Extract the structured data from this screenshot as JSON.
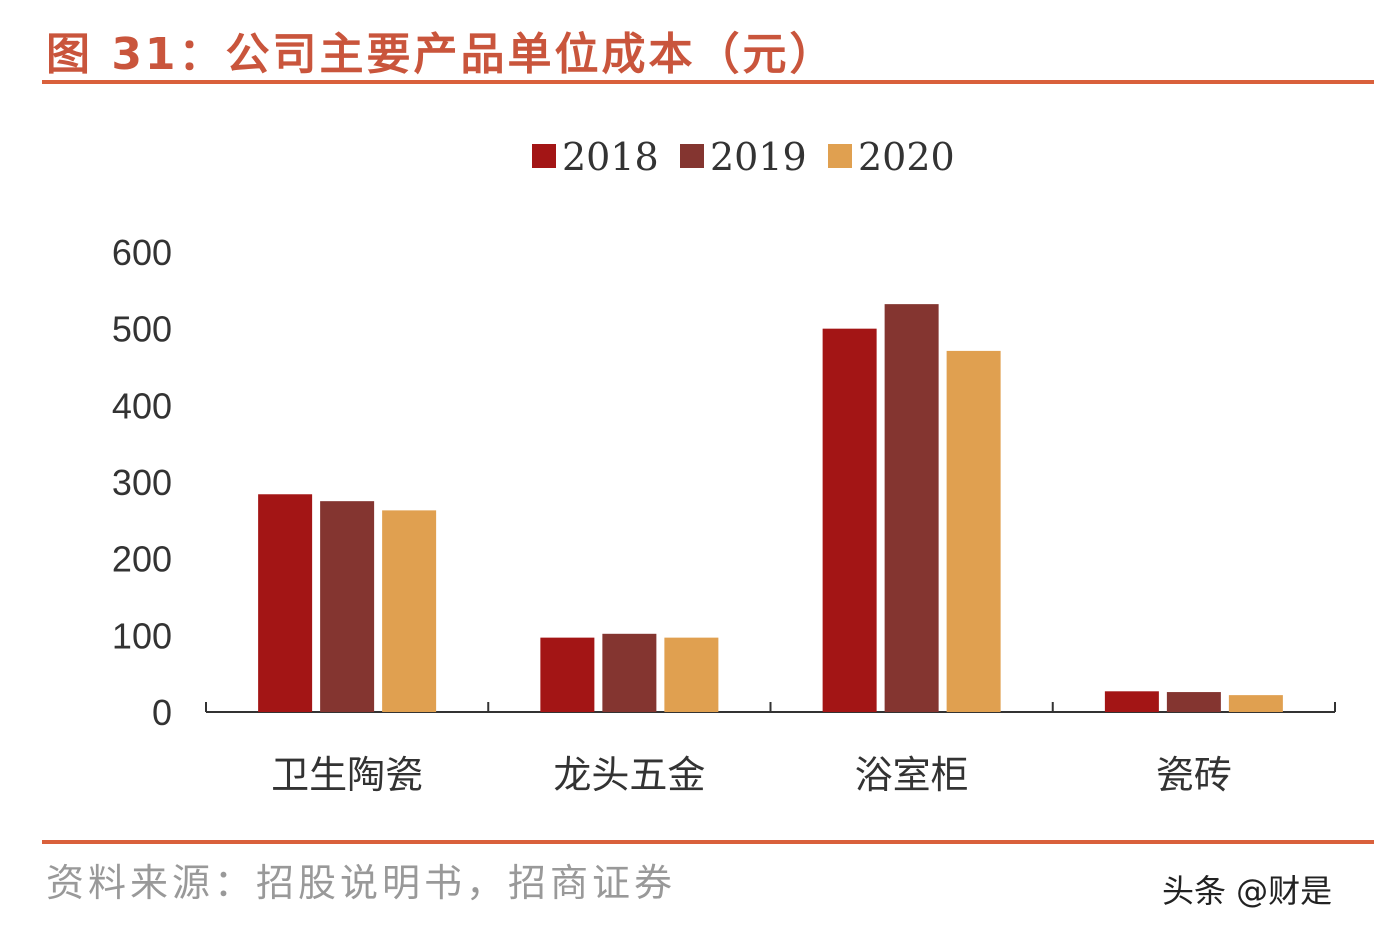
{
  "title": "图 31：公司主要产品单位成本（元）",
  "source": "资料来源：招股说明书，招商证券",
  "watermark": "头条 @财是",
  "chart_data": {
    "type": "bar",
    "title": "图 31：公司主要产品单位成本（元）",
    "xlabel": "",
    "ylabel": "",
    "categories": [
      "卫生陶瓷",
      "龙头五金",
      "浴室柜",
      "瓷砖"
    ],
    "series": [
      {
        "name": "2018",
        "color": "#A31515",
        "values": [
          284,
          97,
          500,
          27
        ]
      },
      {
        "name": "2019",
        "color": "#843530",
        "values": [
          275,
          102,
          532,
          26
        ]
      },
      {
        "name": "2020",
        "color": "#E0A050",
        "values": [
          263,
          97,
          471,
          22
        ]
      }
    ],
    "ylim": [
      0,
      600
    ],
    "yticks": [
      0,
      100,
      200,
      300,
      400,
      500,
      600
    ],
    "grid": false,
    "legend": "top-center"
  }
}
